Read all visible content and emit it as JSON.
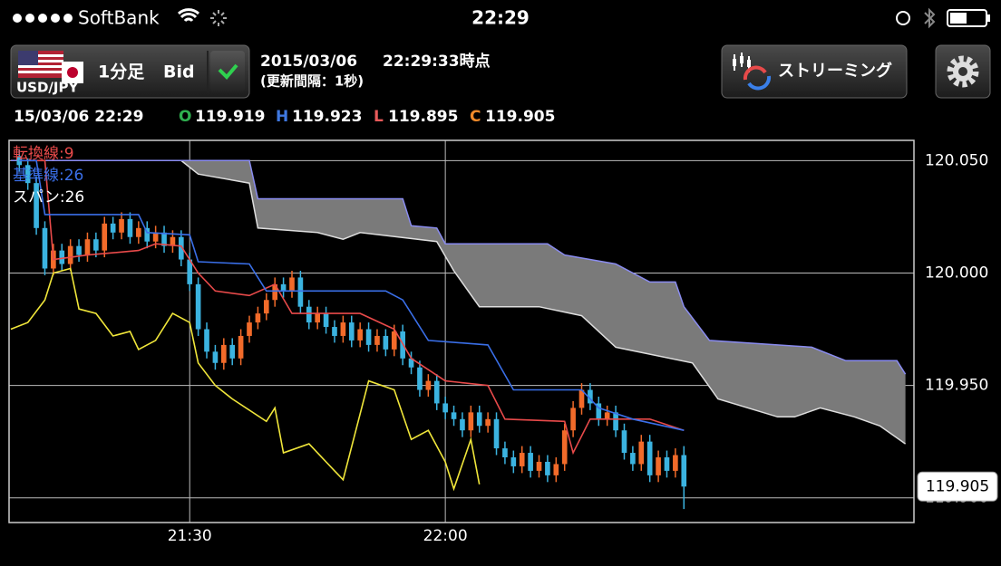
{
  "status_bar": {
    "carrier": "SoftBank",
    "time": "22:29"
  },
  "toolbar": {
    "pair": "USD/JPY",
    "timeframe": "1分足",
    "price_type": "Bid",
    "date": "2015/03/06",
    "as_of": "22:29:33時点",
    "interval": "(更新間隔：1秒)",
    "streaming": "ストリーミング"
  },
  "ohlc": {
    "date": "15/03/06 22:29",
    "items": [
      {
        "key": "O",
        "value": 119.919,
        "color": "#2fb04f"
      },
      {
        "key": "H",
        "value": 119.923,
        "color": "#3f78e0"
      },
      {
        "key": "L",
        "value": 119.895,
        "color": "#e85a5a"
      },
      {
        "key": "C",
        "value": 119.905,
        "color": "#f08a2a"
      }
    ]
  },
  "chart_data": {
    "type": "candlestick",
    "xlim": [
      -21.2,
      85
    ],
    "ylim": [
      119.889,
      120.059
    ],
    "xticks": [
      {
        "value": 0,
        "label": "21:30"
      },
      {
        "value": 30,
        "label": "22:00"
      }
    ],
    "yticks": [
      {
        "value": 120.05,
        "label": "120.050"
      },
      {
        "value": 120,
        "label": "120.000"
      },
      {
        "value": 119.95,
        "label": "119.950"
      },
      {
        "value": 119.9,
        "label": "119.900"
      }
    ],
    "grid": true,
    "up_color": "#f26b2a",
    "down_color": "#3bb3e0",
    "last_price": 119.905,
    "x": [
      -20,
      -19,
      -18,
      -17,
      -16,
      -15,
      -14,
      -13,
      -12,
      -11,
      -10,
      -9,
      -8,
      -7,
      -6,
      -5,
      -4,
      -3,
      -2,
      -1,
      0,
      1,
      2,
      3,
      4,
      5,
      6,
      7,
      8,
      9,
      10,
      11,
      12,
      13,
      14,
      15,
      16,
      17,
      18,
      19,
      20,
      21,
      22,
      23,
      24,
      25,
      26,
      27,
      28,
      29,
      30,
      31,
      32,
      33,
      34,
      35,
      36,
      37,
      38,
      39,
      40,
      41,
      42,
      43,
      44,
      45,
      46,
      47,
      48,
      49,
      50,
      51,
      52,
      53,
      54,
      55,
      56,
      57,
      58
    ],
    "open": [
      120.052,
      120.048,
      120.04,
      120.02,
      120.002,
      120.01,
      120.004,
      120.012,
      120.008,
      120.015,
      120.01,
      120.022,
      120.018,
      120.024,
      120.016,
      120.02,
      120.014,
      120.018,
      120.012,
      120.016,
      120.006,
      119.995,
      119.975,
      119.965,
      119.96,
      119.968,
      119.962,
      119.972,
      119.978,
      119.982,
      119.988,
      119.995,
      119.992,
      119.998,
      119.985,
      119.978,
      119.982,
      119.976,
      119.972,
      119.978,
      119.97,
      119.975,
      119.968,
      119.972,
      119.966,
      119.974,
      119.962,
      119.958,
      119.948,
      119.952,
      119.942,
      119.938,
      119.935,
      119.93,
      119.938,
      119.932,
      119.935,
      119.922,
      119.918,
      119.914,
      119.92,
      119.912,
      119.916,
      119.91,
      119.915,
      119.93,
      119.94,
      119.948,
      119.942,
      119.935,
      119.938,
      119.93,
      119.92,
      119.915,
      119.925,
      119.91,
      119.918,
      119.912,
      119.919
    ],
    "high": [
      120.055,
      120.051,
      120.043,
      120.023,
      120.013,
      120.013,
      120.015,
      120.015,
      120.018,
      120.018,
      120.025,
      120.025,
      120.027,
      120.027,
      120.023,
      120.023,
      120.021,
      120.021,
      120.019,
      120.019,
      120.009,
      119.998,
      119.978,
      119.968,
      119.971,
      119.971,
      119.975,
      119.981,
      119.985,
      119.991,
      119.998,
      119.998,
      120.001,
      120.001,
      119.988,
      119.985,
      119.985,
      119.979,
      119.981,
      119.981,
      119.978,
      119.978,
      119.975,
      119.975,
      119.977,
      119.977,
      119.965,
      119.961,
      119.955,
      119.955,
      119.945,
      119.941,
      119.938,
      119.941,
      119.941,
      119.938,
      119.938,
      119.925,
      119.921,
      119.923,
      119.923,
      119.919,
      119.919,
      119.918,
      119.933,
      119.943,
      119.951,
      119.951,
      119.945,
      119.941,
      119.941,
      119.933,
      119.923,
      119.928,
      119.928,
      119.921,
      119.921,
      119.922,
      119.923
    ],
    "low": [
      120.045,
      120.037,
      120.017,
      119.999,
      119.999,
      120.001,
      120.001,
      120.005,
      120.005,
      120.007,
      120.007,
      120.015,
      120.015,
      120.013,
      120.013,
      120.011,
      120.011,
      120.009,
      120.009,
      120.003,
      119.992,
      119.972,
      119.962,
      119.957,
      119.957,
      119.959,
      119.959,
      119.969,
      119.975,
      119.979,
      119.985,
      119.989,
      119.989,
      119.982,
      119.975,
      119.975,
      119.973,
      119.969,
      119.969,
      119.967,
      119.967,
      119.965,
      119.965,
      119.963,
      119.963,
      119.959,
      119.955,
      119.945,
      119.945,
      119.939,
      119.935,
      119.932,
      119.927,
      119.927,
      119.929,
      119.929,
      119.919,
      119.915,
      119.911,
      119.911,
      119.909,
      119.909,
      119.907,
      119.907,
      119.912,
      119.927,
      119.937,
      119.939,
      119.932,
      119.932,
      119.927,
      119.917,
      119.912,
      119.912,
      119.907,
      119.907,
      119.909,
      119.909,
      119.895
    ],
    "close": [
      120.048,
      120.04,
      120.02,
      120.002,
      120.01,
      120.004,
      120.012,
      120.008,
      120.015,
      120.01,
      120.022,
      120.018,
      120.024,
      120.016,
      120.02,
      120.014,
      120.018,
      120.012,
      120.016,
      120.006,
      119.995,
      119.975,
      119.965,
      119.96,
      119.968,
      119.962,
      119.972,
      119.978,
      119.982,
      119.988,
      119.995,
      119.992,
      119.998,
      119.985,
      119.978,
      119.982,
      119.976,
      119.972,
      119.978,
      119.97,
      119.975,
      119.968,
      119.972,
      119.966,
      119.974,
      119.962,
      119.958,
      119.948,
      119.952,
      119.942,
      119.938,
      119.935,
      119.93,
      119.938,
      119.932,
      119.935,
      119.922,
      119.918,
      119.914,
      119.92,
      119.912,
      119.916,
      119.91,
      119.915,
      119.93,
      119.94,
      119.948,
      119.942,
      119.935,
      119.938,
      119.93,
      119.92,
      119.915,
      119.925,
      119.91,
      119.918,
      119.912,
      119.919,
      119.905
    ],
    "cloud": {
      "name": "スパン:26",
      "legend_color": "#ffffff",
      "fill": "#7a7a7a",
      "upper": {
        "color": "#8a8cf0",
        "x": [
          -21,
          7,
          8,
          25,
          26,
          29,
          30,
          42,
          44,
          50,
          54,
          57,
          58,
          61,
          73,
          77,
          83,
          84
        ],
        "values": [
          120.05,
          120.05,
          120.033,
          120.033,
          120.021,
          120.02,
          120.013,
          120.013,
          120.008,
          120.004,
          119.996,
          119.996,
          119.985,
          119.97,
          119.967,
          119.961,
          119.961,
          119.955
        ]
      },
      "lower": {
        "color": "#dddddd",
        "x": [
          -21,
          -1,
          1,
          7,
          8,
          15,
          18,
          20,
          29,
          31,
          34,
          41,
          46,
          50,
          59,
          62,
          69,
          71,
          74,
          78,
          81,
          84
        ],
        "values": [
          120.05,
          120.05,
          120.044,
          120.04,
          120.02,
          120.018,
          120.015,
          120.018,
          120.014,
          120.001,
          119.985,
          119.985,
          119.981,
          119.967,
          119.96,
          119.944,
          119.936,
          119.936,
          119.94,
          119.936,
          119.932,
          119.924
        ]
      }
    },
    "lines": [
      {
        "name": "転換線:9",
        "color": "#e84a4a",
        "x": [
          -20,
          -17,
          -16,
          -12,
          -6,
          -4,
          -1,
          1,
          3,
          7,
          10,
          12,
          20,
          24,
          26,
          30,
          35,
          37,
          44,
          45,
          47,
          54,
          58
        ],
        "values": [
          120.05,
          120.05,
          120.006,
          120.008,
          120.01,
          120.013,
          120.012,
          120.0,
          119.992,
          119.99,
          119.995,
          119.982,
          119.982,
          119.975,
          119.962,
          119.952,
          119.95,
          119.935,
          119.934,
          119.92,
          119.935,
          119.935,
          119.93
        ]
      },
      {
        "name": "基準線:26",
        "color": "#3a6fe8",
        "x": [
          -20,
          -18,
          -17,
          -6,
          -5,
          0,
          1,
          7,
          9,
          23,
          25,
          28,
          35,
          38,
          46,
          48,
          52,
          58
        ],
        "values": [
          120.05,
          120.05,
          120.026,
          120.026,
          120.018,
          120.017,
          120.005,
          120.004,
          119.992,
          119.992,
          119.988,
          119.97,
          119.968,
          119.948,
          119.948,
          119.94,
          119.935,
          119.93
        ]
      },
      {
        "color": "#f0e63a",
        "x": [
          -21,
          -19,
          -17,
          -16,
          -14,
          -13,
          -11,
          -9,
          -7,
          -6,
          -4,
          -2,
          0,
          1,
          3,
          5,
          9,
          10,
          11,
          14,
          16,
          17,
          18,
          21,
          24,
          26,
          28,
          30,
          31,
          33,
          34
        ],
        "values": [
          119.975,
          119.978,
          119.988,
          120.0,
          120.002,
          119.984,
          119.982,
          119.972,
          119.974,
          119.966,
          119.97,
          119.982,
          119.978,
          119.96,
          119.95,
          119.944,
          119.934,
          119.94,
          119.92,
          119.924,
          119.916,
          119.912,
          119.908,
          119.952,
          119.948,
          119.926,
          119.93,
          119.916,
          119.904,
          119.926,
          119.906
        ]
      }
    ]
  }
}
